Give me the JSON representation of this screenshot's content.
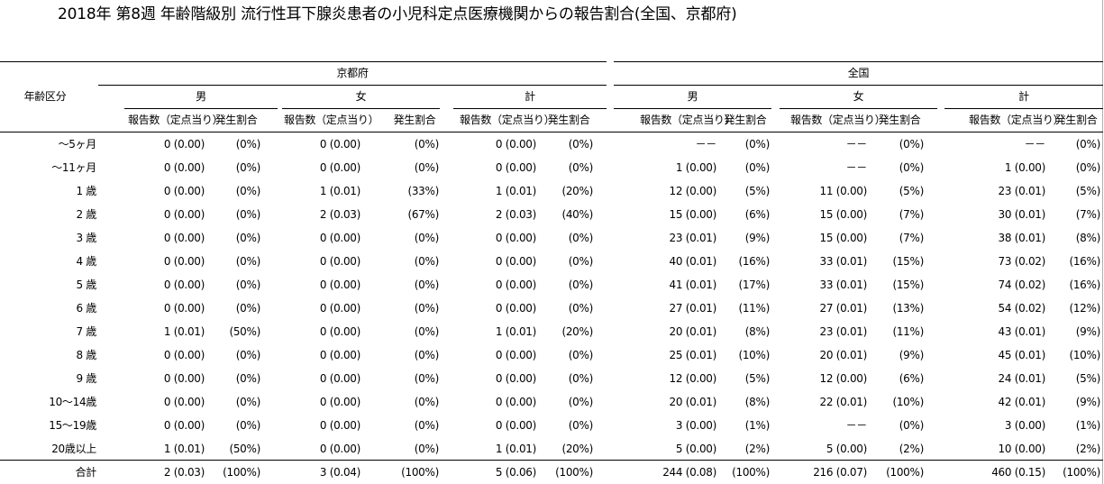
{
  "title": "2018年 第8週 年齢階級別 流行性耳下腺炎患者の小児科定点医療機関からの報告割合(全国、京都府)",
  "headers": {
    "age_col": "年齢区分",
    "regions": [
      "京都府",
      "全国"
    ],
    "sexes": [
      "男",
      "女",
      "計"
    ],
    "report_label": "報告数（定点当り）",
    "rate_label": "発生割合"
  },
  "rows": [
    {
      "age": "～5ヶ月",
      "cells": [
        [
          "0 (0.00)",
          "(0%)"
        ],
        [
          "0 (0.00)",
          "(0%)"
        ],
        [
          "0 (0.00)",
          "(0%)"
        ],
        [
          "－－",
          "(0%)"
        ],
        [
          "－－",
          "(0%)"
        ],
        [
          "－－",
          "(0%)"
        ]
      ]
    },
    {
      "age": "～11ヶ月",
      "cells": [
        [
          "0 (0.00)",
          "(0%)"
        ],
        [
          "0 (0.00)",
          "(0%)"
        ],
        [
          "0 (0.00)",
          "(0%)"
        ],
        [
          "1 (0.00)",
          "(0%)"
        ],
        [
          "－－",
          "(0%)"
        ],
        [
          "1 (0.00)",
          "(0%)"
        ]
      ]
    },
    {
      "age": "1 歳",
      "cells": [
        [
          "0 (0.00)",
          "(0%)"
        ],
        [
          "1 (0.01)",
          "(33%)"
        ],
        [
          "1 (0.01)",
          "(20%)"
        ],
        [
          "12 (0.00)",
          "(5%)"
        ],
        [
          "11 (0.00)",
          "(5%)"
        ],
        [
          "23 (0.01)",
          "(5%)"
        ]
      ]
    },
    {
      "age": "2 歳",
      "cells": [
        [
          "0 (0.00)",
          "(0%)"
        ],
        [
          "2 (0.03)",
          "(67%)"
        ],
        [
          "2 (0.03)",
          "(40%)"
        ],
        [
          "15 (0.00)",
          "(6%)"
        ],
        [
          "15 (0.00)",
          "(7%)"
        ],
        [
          "30 (0.01)",
          "(7%)"
        ]
      ]
    },
    {
      "age": "3 歳",
      "cells": [
        [
          "0 (0.00)",
          "(0%)"
        ],
        [
          "0 (0.00)",
          "(0%)"
        ],
        [
          "0 (0.00)",
          "(0%)"
        ],
        [
          "23 (0.01)",
          "(9%)"
        ],
        [
          "15 (0.00)",
          "(7%)"
        ],
        [
          "38 (0.01)",
          "(8%)"
        ]
      ]
    },
    {
      "age": "4 歳",
      "cells": [
        [
          "0 (0.00)",
          "(0%)"
        ],
        [
          "0 (0.00)",
          "(0%)"
        ],
        [
          "0 (0.00)",
          "(0%)"
        ],
        [
          "40 (0.01)",
          "(16%)"
        ],
        [
          "33 (0.01)",
          "(15%)"
        ],
        [
          "73 (0.02)",
          "(16%)"
        ]
      ]
    },
    {
      "age": "5 歳",
      "cells": [
        [
          "0 (0.00)",
          "(0%)"
        ],
        [
          "0 (0.00)",
          "(0%)"
        ],
        [
          "0 (0.00)",
          "(0%)"
        ],
        [
          "41 (0.01)",
          "(17%)"
        ],
        [
          "33 (0.01)",
          "(15%)"
        ],
        [
          "74 (0.02)",
          "(16%)"
        ]
      ]
    },
    {
      "age": "6 歳",
      "cells": [
        [
          "0 (0.00)",
          "(0%)"
        ],
        [
          "0 (0.00)",
          "(0%)"
        ],
        [
          "0 (0.00)",
          "(0%)"
        ],
        [
          "27 (0.01)",
          "(11%)"
        ],
        [
          "27 (0.01)",
          "(13%)"
        ],
        [
          "54 (0.02)",
          "(12%)"
        ]
      ]
    },
    {
      "age": "7 歳",
      "cells": [
        [
          "1 (0.01)",
          "(50%)"
        ],
        [
          "0 (0.00)",
          "(0%)"
        ],
        [
          "1 (0.01)",
          "(20%)"
        ],
        [
          "20 (0.01)",
          "(8%)"
        ],
        [
          "23 (0.01)",
          "(11%)"
        ],
        [
          "43 (0.01)",
          "(9%)"
        ]
      ]
    },
    {
      "age": "8 歳",
      "cells": [
        [
          "0 (0.00)",
          "(0%)"
        ],
        [
          "0 (0.00)",
          "(0%)"
        ],
        [
          "0 (0.00)",
          "(0%)"
        ],
        [
          "25 (0.01)",
          "(10%)"
        ],
        [
          "20 (0.01)",
          "(9%)"
        ],
        [
          "45 (0.01)",
          "(10%)"
        ]
      ]
    },
    {
      "age": "9 歳",
      "cells": [
        [
          "0 (0.00)",
          "(0%)"
        ],
        [
          "0 (0.00)",
          "(0%)"
        ],
        [
          "0 (0.00)",
          "(0%)"
        ],
        [
          "12 (0.00)",
          "(5%)"
        ],
        [
          "12 (0.00)",
          "(6%)"
        ],
        [
          "24 (0.01)",
          "(5%)"
        ]
      ]
    },
    {
      "age": "10～14歳",
      "cells": [
        [
          "0 (0.00)",
          "(0%)"
        ],
        [
          "0 (0.00)",
          "(0%)"
        ],
        [
          "0 (0.00)",
          "(0%)"
        ],
        [
          "20 (0.01)",
          "(8%)"
        ],
        [
          "22 (0.01)",
          "(10%)"
        ],
        [
          "42 (0.01)",
          "(9%)"
        ]
      ]
    },
    {
      "age": "15～19歳",
      "cells": [
        [
          "0 (0.00)",
          "(0%)"
        ],
        [
          "0 (0.00)",
          "(0%)"
        ],
        [
          "0 (0.00)",
          "(0%)"
        ],
        [
          "3 (0.00)",
          "(1%)"
        ],
        [
          "－－",
          "(0%)"
        ],
        [
          "3 (0.00)",
          "(1%)"
        ]
      ]
    },
    {
      "age": "20歳以上",
      "cells": [
        [
          "1 (0.01)",
          "(50%)"
        ],
        [
          "0 (0.00)",
          "(0%)"
        ],
        [
          "1 (0.01)",
          "(20%)"
        ],
        [
          "5 (0.00)",
          "(2%)"
        ],
        [
          "5 (0.00)",
          "(2%)"
        ],
        [
          "10 (0.00)",
          "(2%)"
        ]
      ]
    }
  ],
  "total": {
    "age": "合計",
    "cells": [
      [
        "2 (0.03)",
        "(100%)"
      ],
      [
        "3 (0.04)",
        "(100%)"
      ],
      [
        "5 (0.06)",
        "(100%)"
      ],
      [
        "244 (0.08)",
        "(100%)"
      ],
      [
        "216 (0.07)",
        "(100%)"
      ],
      [
        "460 (0.15)",
        "(100%)"
      ]
    ]
  }
}
